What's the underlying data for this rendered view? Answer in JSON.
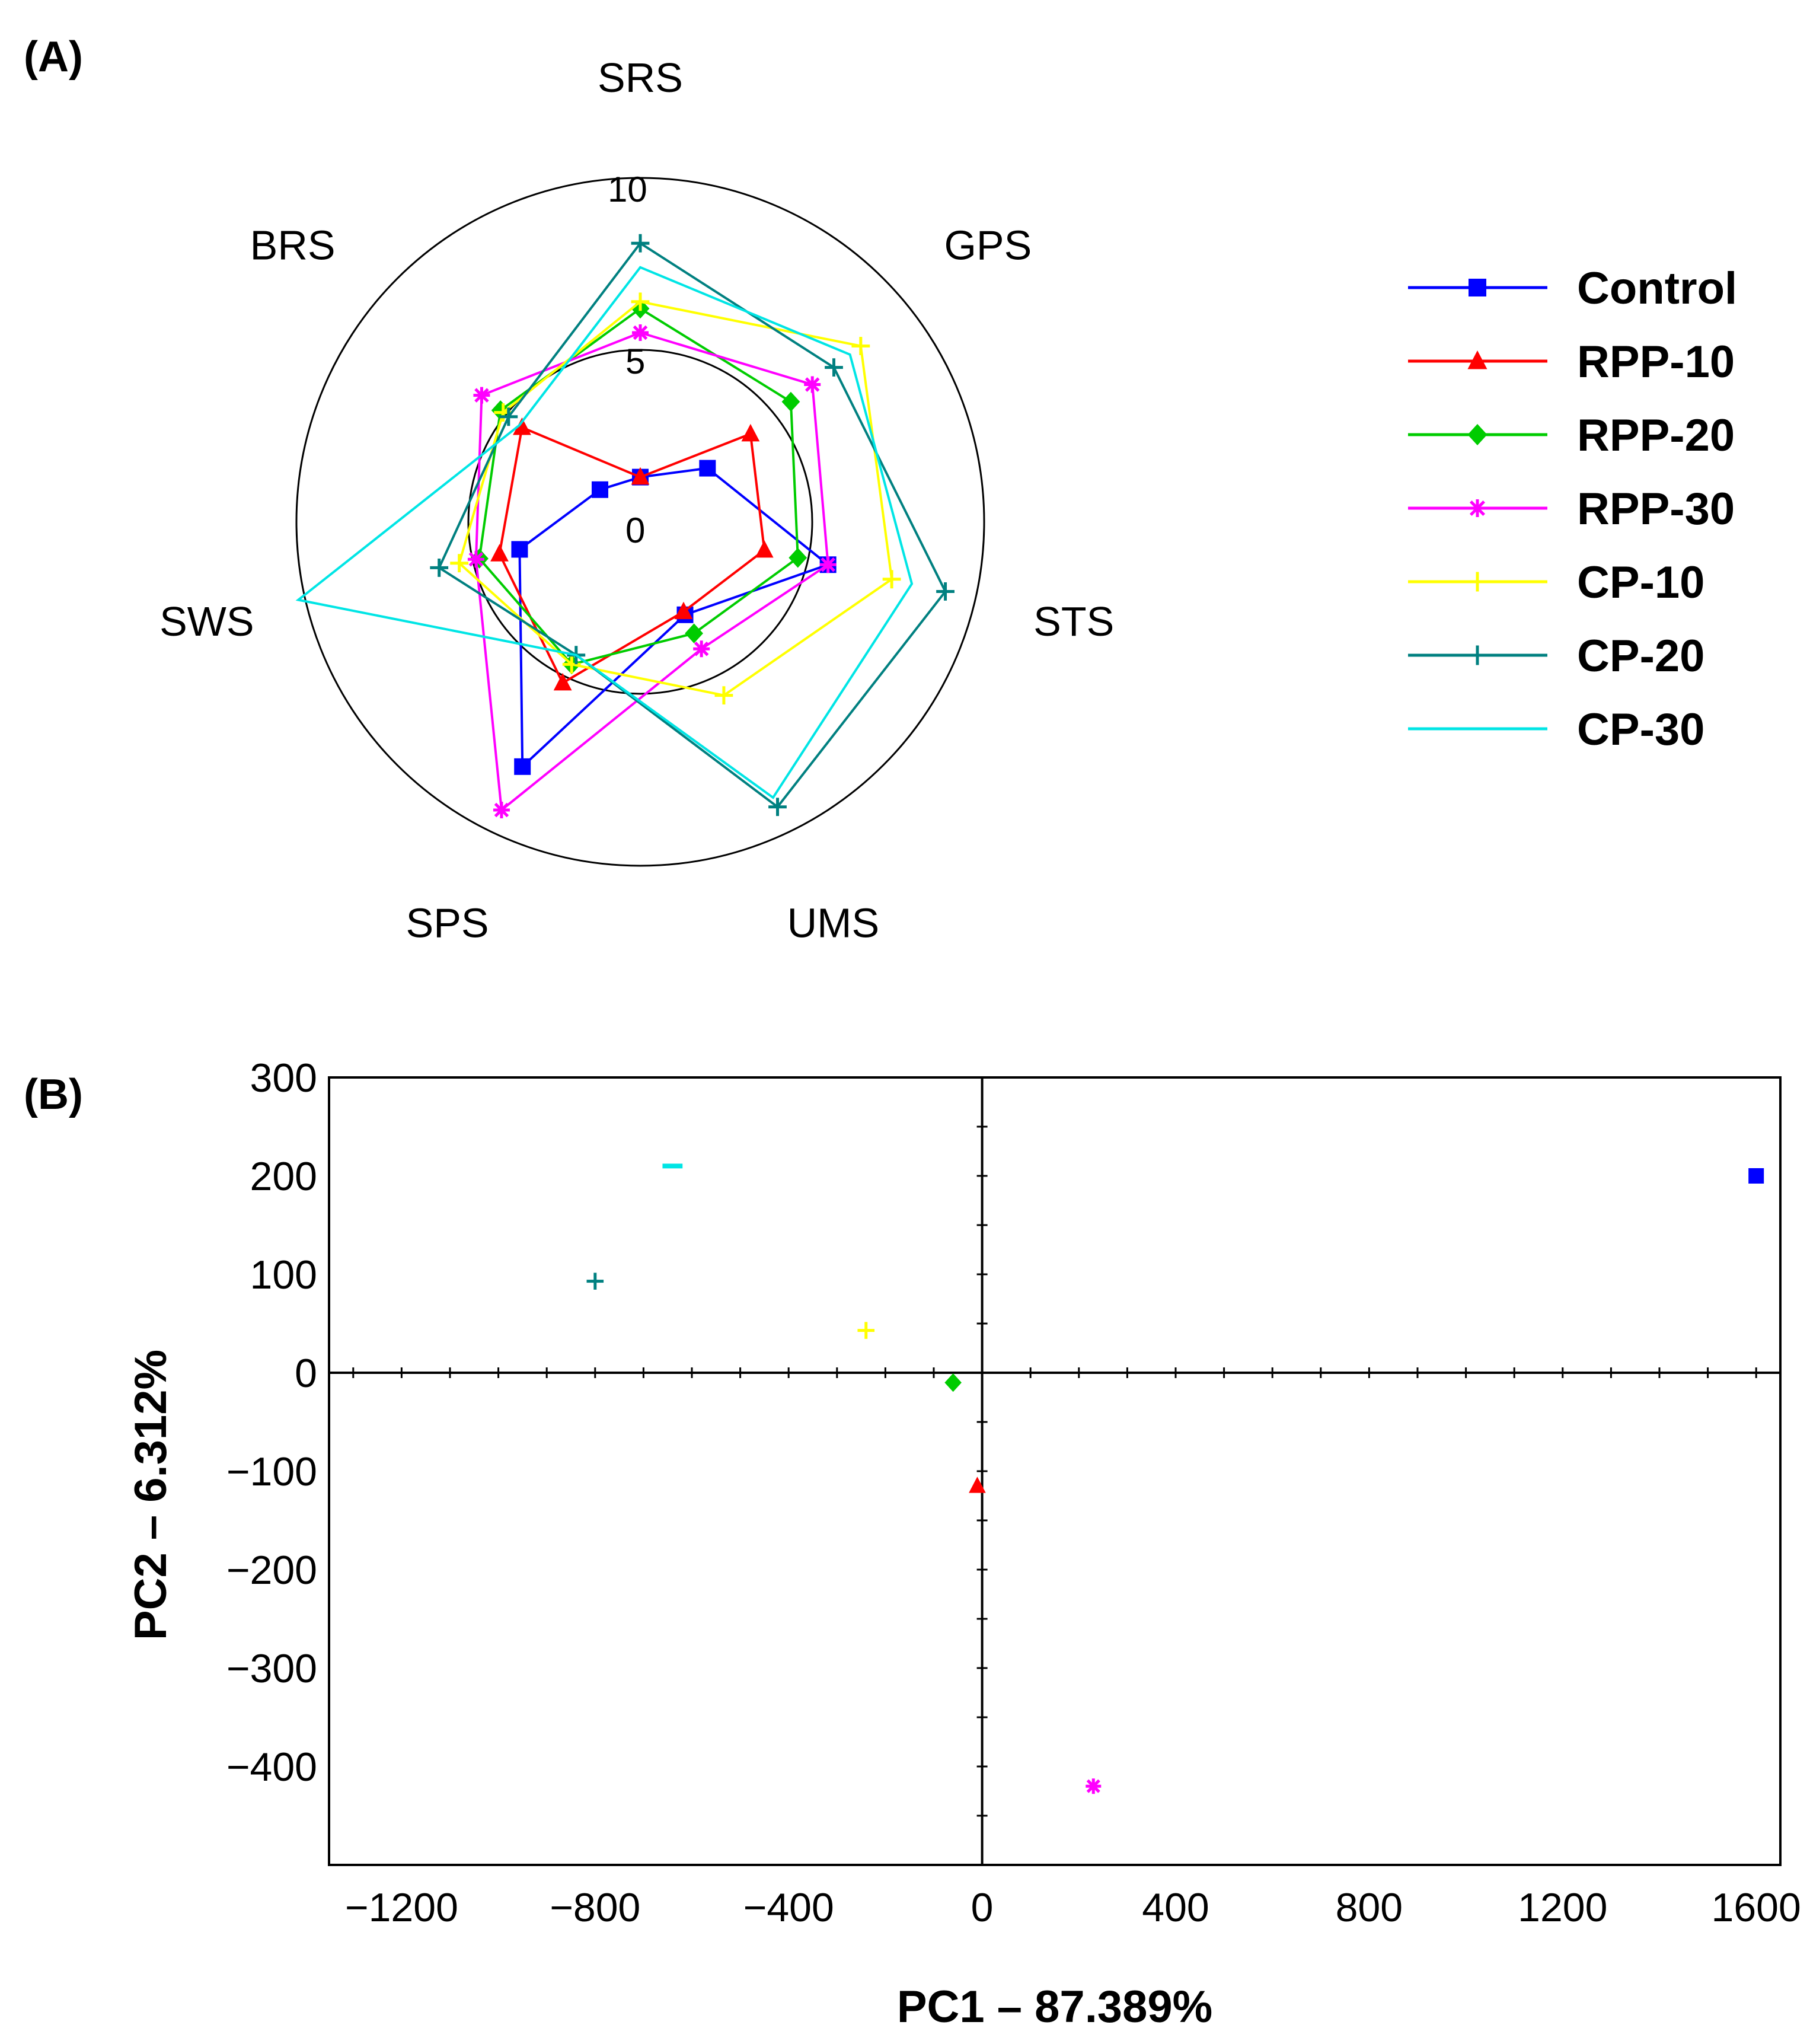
{
  "panels": {
    "a_label": "(A)",
    "b_label": "(B)"
  },
  "series_colors": {
    "Control": "#0000ff",
    "RPP-10": "#ff0000",
    "RPP-20": "#00cc00",
    "RPP-30": "#ff00ff",
    "CP-10": "#ffff00",
    "CP-20": "#008080",
    "CP-30": "#00e5e5"
  },
  "chart_data": [
    {
      "type": "radar",
      "panel": "(A)",
      "axes": [
        "SRS",
        "GPS",
        "STS",
        "UMS",
        "SPS",
        "SWS",
        "BRS"
      ],
      "ring_ticks": [
        "0",
        "5",
        "10"
      ],
      "rlim": [
        0,
        10
      ],
      "legend_position": "right",
      "series": [
        {
          "name": "Control",
          "marker": "square",
          "values": [
            1.3,
            2.5,
            5.6,
            3.0,
            7.9,
            3.6,
            1.5
          ]
        },
        {
          "name": "RPP-10",
          "marker": "triangle",
          "values": [
            1.3,
            4.1,
            3.7,
            2.9,
            5.2,
            4.2,
            4.4
          ]
        },
        {
          "name": "RPP-20",
          "marker": "diamond",
          "values": [
            6.2,
            5.6,
            4.7,
            3.6,
            4.6,
            4.8,
            5.2
          ]
        },
        {
          "name": "RPP-30",
          "marker": "star",
          "values": [
            5.5,
            6.4,
            5.6,
            4.1,
            9.3,
            4.9,
            5.9
          ]
        },
        {
          "name": "CP-10",
          "marker": "plus",
          "values": [
            6.4,
            8.2,
            7.5,
            5.6,
            4.6,
            5.4,
            5.1
          ]
        },
        {
          "name": "CP-20",
          "marker": "plus",
          "values": [
            8.1,
            7.2,
            9.1,
            9.2,
            4.3,
            6.0,
            4.9
          ]
        },
        {
          "name": "CP-30",
          "marker": "none",
          "values": [
            7.4,
            7.8,
            8.1,
            8.9,
            4.3,
            10.2,
            4.5
          ]
        }
      ]
    },
    {
      "type": "scatter",
      "panel": "(B)",
      "xlabel": "PC1 – 87.389%",
      "ylabel": "PC2 – 6.312%",
      "xlim": [
        -1350,
        1650
      ],
      "ylim": [
        -500,
        300
      ],
      "xticks": [
        -1200,
        -800,
        -400,
        0,
        400,
        800,
        1200,
        1600
      ],
      "xtick_labels": [
        "−1200",
        "−800",
        "−400",
        "0",
        "400",
        "800",
        "1200",
        "1600"
      ],
      "yticks": [
        300,
        200,
        100,
        0,
        -100,
        -200,
        -300,
        -400
      ],
      "ytick_labels": [
        "300",
        "200",
        "100",
        "0",
        "−100",
        "−200",
        "−300",
        "−400"
      ],
      "points": [
        {
          "name": "Control",
          "marker": "square",
          "x": 1600,
          "y": 200
        },
        {
          "name": "RPP-10",
          "marker": "triangle",
          "x": -10,
          "y": -115
        },
        {
          "name": "RPP-20",
          "marker": "diamond",
          "x": -60,
          "y": -10
        },
        {
          "name": "RPP-30",
          "marker": "star",
          "x": 230,
          "y": -420
        },
        {
          "name": "CP-10",
          "marker": "plus",
          "x": -240,
          "y": 43
        },
        {
          "name": "CP-20",
          "marker": "plus",
          "x": -800,
          "y": 93
        },
        {
          "name": "CP-30",
          "marker": "dash",
          "x": -640,
          "y": 210
        }
      ]
    }
  ]
}
